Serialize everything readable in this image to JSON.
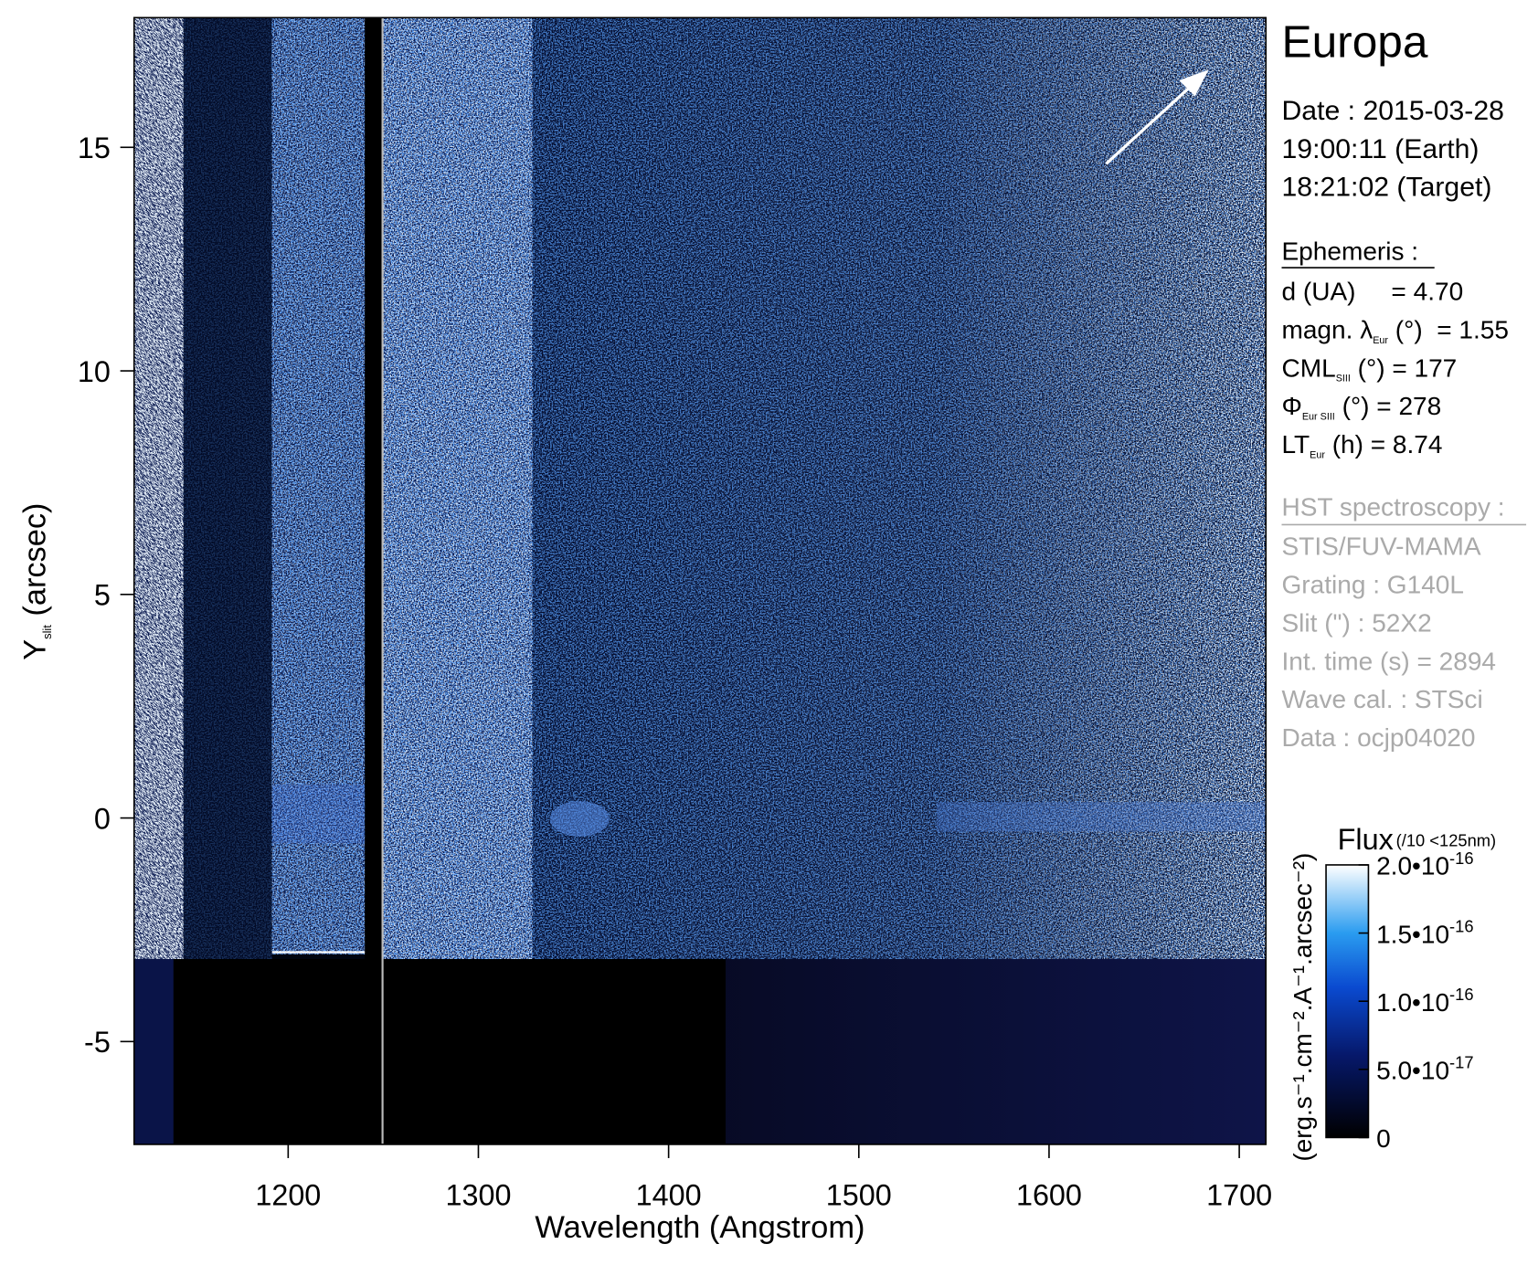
{
  "chart_data": {
    "type": "image",
    "xlabel": "Wavelength (Angstrom)",
    "ylabel": {
      "main": "Y",
      "sub": "slit",
      "rest": " (arcsec)"
    },
    "xlim": [
      1119,
      1714
    ],
    "xticks": [
      1200,
      1300,
      1400,
      1500,
      1600,
      1700
    ],
    "ylim": [
      -7.3,
      17.9
    ],
    "yticks": [
      -5,
      0,
      5,
      10,
      15
    ],
    "colorbar": {
      "title": "Flux",
      "note": "(/10 <125nm)",
      "unit": "(erg.s⁻¹.cm⁻².A⁻¹.arcsec⁻²)",
      "clim": [
        0,
        2e-16
      ],
      "ticks": [
        0,
        {
          "value": 5e-17,
          "label": "5.0•10",
          "exponent": "-17"
        },
        {
          "value": 1e-16,
          "label": "1.0•10",
          "exponent": "-16"
        },
        {
          "value": 1.5e-16,
          "label": "1.5•10",
          "exponent": "-16"
        },
        {
          "value": 2e-16,
          "label": "2.0•10",
          "exponent": "-16"
        }
      ]
    }
  },
  "panel": {
    "target": "Europa",
    "date": [
      "Date : 2015-03-28",
      "19:00:11 (Earth)",
      "18:21:02 (Target)"
    ],
    "ephemeris_title": "Ephemeris :",
    "ephemeris": [
      {
        "main": "d (UA)     = 4.70"
      },
      {
        "main": "magn. λ",
        "sub": "Eur",
        "rest": " (°)  = 1.55"
      },
      {
        "main": "CML",
        "sub": "SIII",
        "rest": " (°) = 177"
      },
      {
        "main": "Φ",
        "sub": "Eur SIII",
        "rest": " (°) = 278"
      },
      {
        "main": "LT",
        "sub": "Eur",
        "rest": " (h) = 8.74"
      }
    ],
    "hst_title": "HST spectroscopy :",
    "hst": [
      "STIS/FUV-MAMA",
      "Grating : G140L",
      "Slit (\") : 52X2",
      "Int. time (s) = 2894",
      "Wave cal. : STSci",
      "Data : ocjp04020"
    ]
  }
}
